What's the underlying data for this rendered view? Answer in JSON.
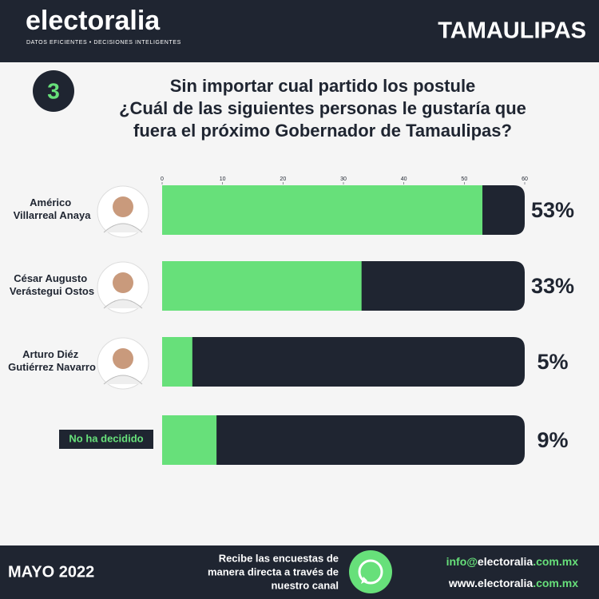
{
  "brand": "electoralia",
  "tagline": "DATOS EFICIENTES • DECISIONES INTELIGENTES",
  "region": "TAMAULIPAS",
  "question_number": "3",
  "question": [
    "Sin importar cual partido los postule",
    "¿Cuál de las siguientes personas le gustaría que"
  ],
  "question_last": [
    "fuera el próximo ",
    "Gobernador",
    " de ",
    "Tamaulipas",
    "?"
  ],
  "chart_data": {
    "type": "bar",
    "orientation": "horizontal",
    "categories": [
      "Américo Villarreal Anaya",
      "César Augusto Verástegui Ostos",
      "Arturo Diéz Gutiérrez Navarro",
      "No ha decidido"
    ],
    "values": [
      53,
      33,
      5,
      9
    ],
    "value_labels": [
      "53%",
      "33%",
      "5%",
      "9%"
    ],
    "color": "#67e07a",
    "track_color": "#1f2531",
    "xlim": [
      0,
      60
    ],
    "xticks": [
      0,
      10,
      20,
      30,
      40,
      50,
      60
    ]
  },
  "footer": {
    "date": "MAYO 2022",
    "cta": [
      "Recibe las encuestas de",
      "manera directa a través de",
      "nuestro canal"
    ],
    "email": [
      "info@",
      "electoralia",
      ".com.mx"
    ],
    "web": [
      "www.",
      "electoralia",
      ".com.mx"
    ]
  }
}
